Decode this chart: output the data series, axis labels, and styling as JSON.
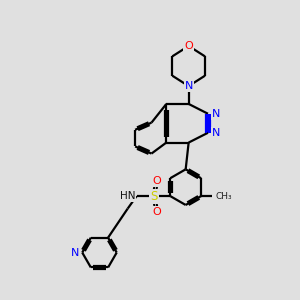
{
  "bg_color": "#e0e0e0",
  "bond_color": "#000000",
  "N_color": "#0000ff",
  "O_color": "#ff0000",
  "S_color": "#cccc00",
  "line_width": 1.6,
  "fig_width": 3.0,
  "fig_height": 3.0,
  "dpi": 100,
  "xlim": [
    0,
    10
  ],
  "ylim": [
    0,
    10
  ]
}
